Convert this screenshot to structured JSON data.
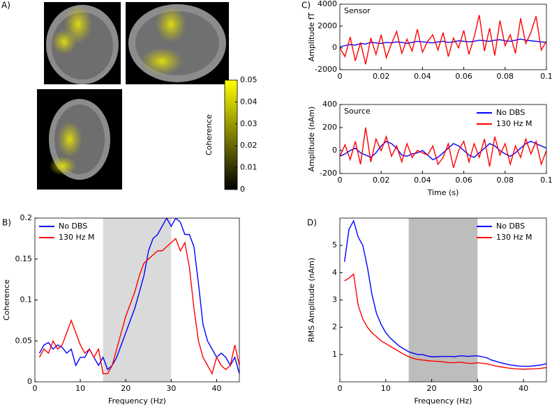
{
  "chart_data": [
    {
      "type": "colorbar",
      "panel": "A)",
      "label": "Coherence",
      "colors": [
        "#000000",
        "#ffff00"
      ],
      "ylim": [
        0,
        0.05
      ],
      "yticks": [
        0,
        0.01,
        0.02,
        0.03,
        0.04,
        0.05
      ]
    },
    {
      "type": "line",
      "panel": "C)",
      "annotation": "Sensor",
      "ylabel": "Amplitude fT",
      "xlim": [
        0,
        0.1
      ],
      "xticks": [
        0,
        0.02,
        0.04,
        0.06,
        0.08,
        0.1
      ],
      "ylim": [
        -2000,
        4000
      ],
      "yticks": [
        -2000,
        0,
        2000,
        4000
      ],
      "x": [
        0,
        0.0025,
        0.005,
        0.0075,
        0.01,
        0.0125,
        0.015,
        0.0175,
        0.02,
        0.0225,
        0.025,
        0.0275,
        0.03,
        0.0325,
        0.035,
        0.0375,
        0.04,
        0.0425,
        0.045,
        0.0475,
        0.05,
        0.0525,
        0.055,
        0.0575,
        0.06,
        0.0625,
        0.065,
        0.0675,
        0.07,
        0.0725,
        0.075,
        0.0775,
        0.08,
        0.0825,
        0.085,
        0.0875,
        0.09,
        0.0925,
        0.095,
        0.0975,
        0.1
      ],
      "series": [
        {
          "color": "#0000ff",
          "values": [
            100,
            200,
            300,
            250,
            400,
            350,
            500,
            450,
            400,
            500,
            450,
            550,
            500,
            400,
            500,
            600,
            550,
            500,
            450,
            550,
            600,
            500,
            550,
            650,
            600,
            550,
            600,
            700,
            650,
            600,
            700,
            750,
            650,
            600,
            700,
            800,
            700,
            650,
            600,
            550,
            500
          ]
        },
        {
          "color": "#ff0000",
          "values": [
            0,
            -800,
            1000,
            -1200,
            500,
            -1500,
            900,
            -600,
            1200,
            -900,
            400,
            1500,
            -500,
            800,
            -300,
            1700,
            -400,
            600,
            1200,
            -200,
            1400,
            -800,
            900,
            0,
            1600,
            -600,
            1000,
            3000,
            -300,
            1800,
            -700,
            2500,
            200,
            1200,
            -500,
            2700,
            400,
            1400,
            2900,
            -200,
            600
          ]
        }
      ]
    },
    {
      "type": "line",
      "annotation": "Source",
      "ylabel": "Amplitude (nAm)",
      "xlabel": "Time (s)",
      "legend": "upper right",
      "xlim": [
        0,
        0.1
      ],
      "xticks": [
        0,
        0.02,
        0.04,
        0.06,
        0.08,
        0.1
      ],
      "ylim": [
        -200,
        400
      ],
      "yticks": [
        -200,
        0,
        200,
        400
      ],
      "x": [
        0,
        0.0025,
        0.005,
        0.0075,
        0.01,
        0.0125,
        0.015,
        0.0175,
        0.02,
        0.0225,
        0.025,
        0.0275,
        0.03,
        0.0325,
        0.035,
        0.0375,
        0.04,
        0.0425,
        0.045,
        0.0475,
        0.05,
        0.0525,
        0.055,
        0.0575,
        0.06,
        0.0625,
        0.065,
        0.0675,
        0.07,
        0.0725,
        0.075,
        0.0775,
        0.08,
        0.0825,
        0.085,
        0.0875,
        0.09,
        0.0925,
        0.095,
        0.0975,
        0.1
      ],
      "series": [
        {
          "name": "No DBS",
          "color": "#0000ff",
          "values": [
            -50,
            -30,
            0,
            20,
            -20,
            -40,
            -60,
            -20,
            40,
            80,
            60,
            20,
            -40,
            -50,
            -30,
            -20,
            0,
            -40,
            -80,
            -60,
            -20,
            20,
            60,
            40,
            0,
            -40,
            -60,
            -20,
            20,
            60,
            40,
            0,
            -30,
            -50,
            -20,
            20,
            60,
            80,
            60,
            40,
            20
          ]
        },
        {
          "name": "130 Hz M",
          "color": "#ff0000",
          "values": [
            -50,
            50,
            -80,
            80,
            -120,
            200,
            -100,
            100,
            0,
            120,
            -50,
            40,
            -100,
            60,
            -60,
            0,
            -20,
            -40,
            40,
            -120,
            -60,
            60,
            -150,
            0,
            80,
            -100,
            60,
            -60,
            100,
            -140,
            120,
            -40,
            60,
            -120,
            40,
            -60,
            100,
            -30,
            80,
            -120,
            0
          ]
        }
      ]
    },
    {
      "type": "line",
      "panel": "B)",
      "ylabel": "Coherence",
      "xlabel": "Frequency (Hz)",
      "legend": "upper left",
      "shade": {
        "x": [
          15,
          30
        ],
        "color": "#dadada"
      },
      "xlim": [
        0,
        45
      ],
      "xticks": [
        0,
        10,
        20,
        30,
        40
      ],
      "ylim": [
        0,
        0.2
      ],
      "yticks": [
        0,
        0.05,
        0.1,
        0.15,
        0.2
      ],
      "x": [
        1,
        2,
        3,
        4,
        5,
        6,
        7,
        8,
        9,
        10,
        11,
        12,
        13,
        14,
        15,
        16,
        17,
        18,
        19,
        20,
        21,
        22,
        23,
        24,
        25,
        26,
        27,
        28,
        29,
        30,
        31,
        32,
        33,
        34,
        35,
        36,
        37,
        38,
        39,
        40,
        41,
        42,
        43,
        44,
        45
      ],
      "series": [
        {
          "name": "No DBS",
          "color": "#0000ff",
          "values": [
            0.035,
            0.045,
            0.048,
            0.04,
            0.045,
            0.042,
            0.035,
            0.04,
            0.02,
            0.03,
            0.03,
            0.04,
            0.03,
            0.02,
            0.03,
            0.015,
            0.02,
            0.03,
            0.045,
            0.06,
            0.075,
            0.09,
            0.11,
            0.13,
            0.16,
            0.175,
            0.18,
            0.19,
            0.2,
            0.19,
            0.2,
            0.195,
            0.18,
            0.18,
            0.165,
            0.12,
            0.07,
            0.05,
            0.04,
            0.03,
            0.035,
            0.03,
            0.02,
            0.03,
            0.01
          ]
        },
        {
          "name": "130 Hz M",
          "color": "#ff0000",
          "values": [
            0.03,
            0.04,
            0.035,
            0.05,
            0.04,
            0.045,
            0.06,
            0.075,
            0.06,
            0.045,
            0.035,
            0.04,
            0.03,
            0.04,
            0.01,
            0.01,
            0.02,
            0.04,
            0.06,
            0.08,
            0.095,
            0.11,
            0.13,
            0.145,
            0.15,
            0.155,
            0.16,
            0.16,
            0.165,
            0.17,
            0.175,
            0.16,
            0.17,
            0.14,
            0.09,
            0.05,
            0.03,
            0.02,
            0.01,
            0.03,
            0.02,
            0.015,
            0.02,
            0.045,
            0.02
          ]
        }
      ]
    },
    {
      "type": "line",
      "panel": "D)",
      "ylabel": "RMS Amplitude (nAm)",
      "xlabel": "Frequency (Hz)",
      "legend": "upper right",
      "shade": {
        "x": [
          15,
          30
        ],
        "color": "#bdbdbd"
      },
      "xlim": [
        0,
        45
      ],
      "xticks": [
        0,
        10,
        20,
        30,
        40
      ],
      "ylim": [
        0,
        6
      ],
      "yticks": [
        1,
        2,
        3,
        4,
        5
      ],
      "x": [
        1,
        2,
        3,
        4,
        5,
        6,
        7,
        8,
        9,
        10,
        11,
        12,
        13,
        14,
        15,
        16,
        17,
        18,
        19,
        20,
        21,
        22,
        23,
        24,
        25,
        26,
        27,
        28,
        29,
        30,
        31,
        32,
        33,
        34,
        35,
        36,
        37,
        38,
        39,
        40,
        41,
        42,
        43,
        44,
        45
      ],
      "series": [
        {
          "name": "No DBS",
          "color": "#0000ff",
          "values": [
            4.4,
            5.6,
            5.9,
            5.3,
            5,
            4.2,
            3.2,
            2.5,
            2.1,
            1.8,
            1.6,
            1.45,
            1.3,
            1.2,
            1.1,
            1.05,
            1.0,
            1.0,
            0.95,
            0.92,
            0.92,
            0.93,
            0.93,
            0.93,
            0.92,
            0.95,
            0.95,
            0.93,
            0.95,
            0.95,
            0.92,
            0.88,
            0.8,
            0.75,
            0.7,
            0.66,
            0.62,
            0.6,
            0.58,
            0.57,
            0.57,
            0.58,
            0.6,
            0.62,
            0.67
          ]
        },
        {
          "name": "130 Hz M",
          "color": "#ff0000",
          "values": [
            3.7,
            3.8,
            3.95,
            2.8,
            2.3,
            2.0,
            1.8,
            1.65,
            1.5,
            1.4,
            1.3,
            1.2,
            1.1,
            1.0,
            0.92,
            0.86,
            0.82,
            0.8,
            0.78,
            0.76,
            0.75,
            0.74,
            0.72,
            0.7,
            0.7,
            0.72,
            0.7,
            0.68,
            0.68,
            0.7,
            0.68,
            0.66,
            0.62,
            0.58,
            0.55,
            0.52,
            0.5,
            0.48,
            0.47,
            0.46,
            0.47,
            0.47,
            0.48,
            0.5,
            0.52
          ]
        }
      ]
    }
  ]
}
